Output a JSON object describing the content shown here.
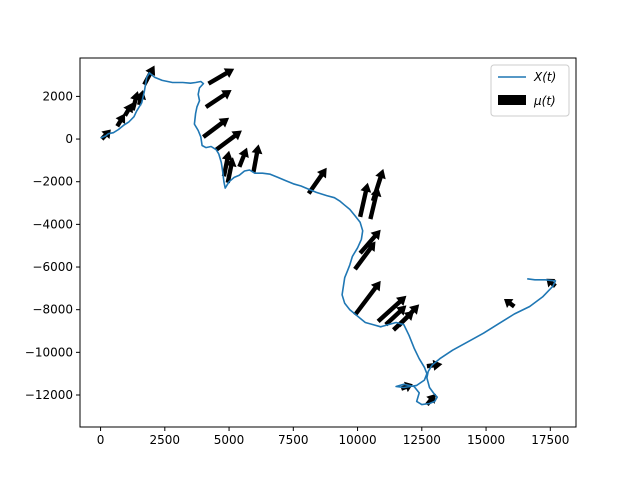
{
  "chart_data": {
    "type": "line",
    "title": "",
    "xlabel": "",
    "ylabel": "",
    "xlim": [
      -800,
      18500
    ],
    "ylim": [
      -13500,
      3800
    ],
    "xticks": [
      0,
      2500,
      5000,
      7500,
      10000,
      12500,
      15000,
      17500
    ],
    "yticks": [
      -12000,
      -10000,
      -8000,
      -6000,
      -4000,
      -2000,
      0,
      2000
    ],
    "grid": false,
    "legend": {
      "placement": "top-right",
      "entries": [
        {
          "label": "X(t)",
          "kind": "line",
          "color": "#1f77b4"
        },
        {
          "label": "μ(t)",
          "kind": "patch",
          "color": "#000000"
        }
      ]
    },
    "series": [
      {
        "name": "X(t)",
        "color": "#1f77b4",
        "points": [
          [
            0,
            50
          ],
          [
            200,
            150
          ],
          [
            300,
            250
          ],
          [
            500,
            300
          ],
          [
            700,
            450
          ],
          [
            900,
            650
          ],
          [
            1100,
            800
          ],
          [
            1300,
            1050
          ],
          [
            1400,
            1300
          ],
          [
            1500,
            1500
          ],
          [
            1600,
            1700
          ],
          [
            1700,
            2200
          ],
          [
            1800,
            2900
          ],
          [
            1900,
            3100
          ],
          [
            2100,
            2900
          ],
          [
            2400,
            2750
          ],
          [
            2800,
            2650
          ],
          [
            3200,
            2650
          ],
          [
            3500,
            2620
          ],
          [
            3700,
            2650
          ],
          [
            3900,
            2700
          ],
          [
            4000,
            2600
          ],
          [
            3850,
            2400
          ],
          [
            3800,
            2100
          ],
          [
            3850,
            1800
          ],
          [
            3750,
            1500
          ],
          [
            3700,
            1200
          ],
          [
            3650,
            700
          ],
          [
            3800,
            400
          ],
          [
            3900,
            100
          ],
          [
            3950,
            -300
          ],
          [
            4100,
            -400
          ],
          [
            4300,
            -350
          ],
          [
            4500,
            -500
          ],
          [
            4600,
            -700
          ],
          [
            4700,
            -1100
          ],
          [
            4750,
            -1500
          ],
          [
            4800,
            -2000
          ],
          [
            4850,
            -2300
          ],
          [
            5000,
            -2000
          ],
          [
            5200,
            -1800
          ],
          [
            5400,
            -1700
          ],
          [
            5600,
            -1500
          ],
          [
            5800,
            -1450
          ],
          [
            6000,
            -1600
          ],
          [
            6300,
            -1600
          ],
          [
            6600,
            -1650
          ],
          [
            6900,
            -1800
          ],
          [
            7200,
            -1950
          ],
          [
            7500,
            -2100
          ],
          [
            7800,
            -2200
          ],
          [
            8100,
            -2350
          ],
          [
            8400,
            -2500
          ],
          [
            8800,
            -2650
          ],
          [
            9100,
            -2750
          ],
          [
            9300,
            -2900
          ],
          [
            9500,
            -3100
          ],
          [
            9700,
            -3300
          ],
          [
            9900,
            -3600
          ],
          [
            10100,
            -3900
          ],
          [
            10200,
            -4300
          ],
          [
            10150,
            -4700
          ],
          [
            10000,
            -5100
          ],
          [
            9800,
            -5500
          ],
          [
            9700,
            -5900
          ],
          [
            9600,
            -6200
          ],
          [
            9500,
            -6500
          ],
          [
            9450,
            -6900
          ],
          [
            9400,
            -7300
          ],
          [
            9500,
            -7700
          ],
          [
            9700,
            -8000
          ],
          [
            9900,
            -8200
          ],
          [
            10100,
            -8400
          ],
          [
            10300,
            -8600
          ],
          [
            10600,
            -8700
          ],
          [
            10900,
            -8800
          ],
          [
            11200,
            -8700
          ],
          [
            11500,
            -8600
          ],
          [
            11800,
            -8700
          ],
          [
            12000,
            -9200
          ],
          [
            12200,
            -9800
          ],
          [
            12400,
            -10300
          ],
          [
            12600,
            -10700
          ],
          [
            12700,
            -11000
          ],
          [
            12600,
            -11300
          ],
          [
            12300,
            -11550
          ],
          [
            11800,
            -11650
          ],
          [
            11500,
            -11600
          ],
          [
            11800,
            -11500
          ],
          [
            12200,
            -11600
          ],
          [
            12400,
            -11900
          ],
          [
            12300,
            -12300
          ],
          [
            12500,
            -12450
          ],
          [
            12800,
            -12400
          ],
          [
            13000,
            -12300
          ],
          [
            13100,
            -12100
          ],
          [
            12950,
            -11900
          ],
          [
            12800,
            -11650
          ],
          [
            12700,
            -11200
          ],
          [
            12750,
            -10900
          ],
          [
            12900,
            -10600
          ],
          [
            13200,
            -10300
          ],
          [
            13700,
            -9900
          ],
          [
            14300,
            -9500
          ],
          [
            14900,
            -9100
          ],
          [
            15500,
            -8650
          ],
          [
            16100,
            -8200
          ],
          [
            16700,
            -7850
          ],
          [
            17200,
            -7400
          ],
          [
            17600,
            -6900
          ],
          [
            17700,
            -6650
          ],
          [
            17300,
            -6600
          ],
          [
            16900,
            -6600
          ],
          [
            16600,
            -6550
          ]
        ]
      }
    ],
    "arrows": {
      "name": "μ(t)",
      "color": "#000000",
      "items": [
        [
          50,
          0,
          350,
          450
        ],
        [
          650,
          600,
          300,
          600
        ],
        [
          950,
          1100,
          300,
          600
        ],
        [
          1250,
          1350,
          200,
          900
        ],
        [
          1500,
          1600,
          150,
          700
        ],
        [
          1700,
          2550,
          400,
          900
        ],
        [
          4100,
          1500,
          1000,
          800
        ],
        [
          4200,
          2600,
          1000,
          700
        ],
        [
          4000,
          100,
          1000,
          900
        ],
        [
          4500,
          -500,
          1000,
          900
        ],
        [
          4800,
          -1750,
          200,
          1200
        ],
        [
          4950,
          -2050,
          200,
          1200
        ],
        [
          5400,
          -1300,
          300,
          900
        ],
        [
          5950,
          -1550,
          200,
          1300
        ],
        [
          8100,
          -2550,
          700,
          1200
        ],
        [
          10100,
          -3650,
          300,
          1600
        ],
        [
          10500,
          -3750,
          300,
          1500
        ],
        [
          10600,
          -2900,
          400,
          1500
        ],
        [
          9900,
          -6100,
          800,
          1300
        ],
        [
          10100,
          -5350,
          800,
          1100
        ],
        [
          9900,
          -8250,
          1000,
          1600
        ],
        [
          10800,
          -8550,
          1100,
          1200
        ],
        [
          11100,
          -8700,
          800,
          900
        ],
        [
          11400,
          -8950,
          800,
          900
        ],
        [
          11600,
          -8750,
          800,
          1000
        ],
        [
          12700,
          -10650,
          600,
          100
        ],
        [
          11700,
          -11700,
          450,
          200
        ],
        [
          12700,
          -12450,
          350,
          500
        ],
        [
          16100,
          -7850,
          -400,
          350
        ],
        [
          17700,
          -6900,
          -350,
          350
        ]
      ]
    }
  }
}
